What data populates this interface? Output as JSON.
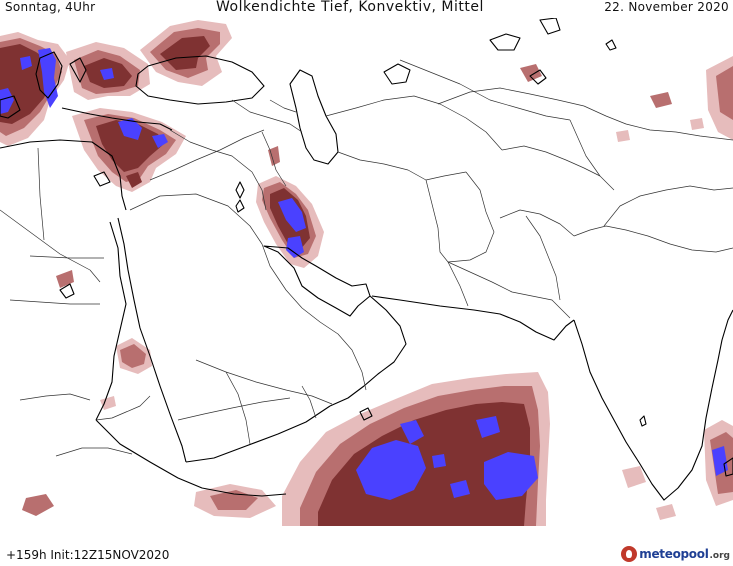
{
  "header": {
    "left": "Sonntag, 4Uhr",
    "center": "Wolkendichte  Tief, Konvektiv, Mittel",
    "right": "22. November 2020"
  },
  "footer": {
    "run_info": "+159h Init:12Z15NOV2020",
    "logo_name": "meteopool",
    "logo_tld": ".org"
  },
  "colors": {
    "background": "#ffffff",
    "cloud_light": "#e6bcbc",
    "cloud_medium": "#b86f6f",
    "cloud_dense": "#7f3232",
    "cloud_max": "#4a41ff",
    "coastline": "#000000",
    "border": "#333333"
  }
}
